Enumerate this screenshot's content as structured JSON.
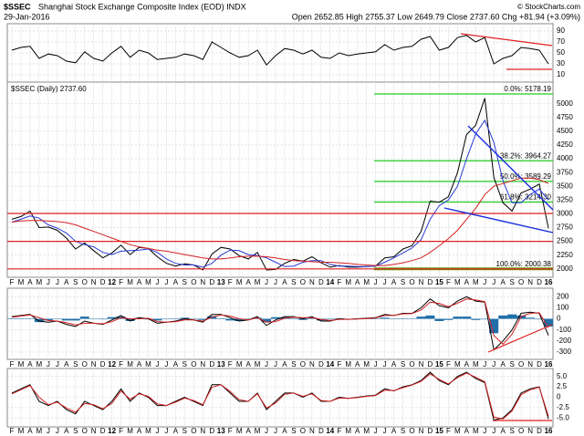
{
  "header": {
    "symbol": "$SSEC",
    "name": "Shanghai Stock Exchange Composite Index (EOD) INDX",
    "date": "29-Jan-2016",
    "quote": "Open 2652.85 High 2755.37 Low 2649.79 Close 2737.60 Chg +81.94 (+3.09%)",
    "credit": "© StockCharts.com"
  },
  "chart_data": [
    {
      "type": "line",
      "ylim": [
        0,
        100
      ],
      "yticks": [
        90,
        70,
        50,
        30,
        10
      ],
      "grid": true,
      "series": [
        {
          "color": "#000000",
          "values": [
            55,
            60,
            62,
            40,
            48,
            45,
            35,
            32,
            52,
            40,
            35,
            50,
            62,
            42,
            55,
            50,
            38,
            40,
            42,
            48,
            45,
            38,
            70,
            60,
            50,
            42,
            45,
            55,
            28,
            45,
            58,
            55,
            48,
            55,
            42,
            40,
            50,
            45,
            48,
            50,
            52,
            65,
            55,
            60,
            62,
            75,
            80,
            55,
            60,
            78,
            82,
            70,
            78,
            30,
            40,
            45,
            60,
            58,
            55,
            30
          ]
        }
      ]
    },
    {
      "type": "line",
      "ylim": [
        1880,
        5360
      ],
      "grid": true,
      "yticks": [
        2000,
        2250,
        2500,
        2750,
        3000,
        3250,
        3500,
        3750,
        4000,
        4250,
        4500,
        4750,
        5000
      ],
      "categories": [
        "F",
        "M",
        "A",
        "M",
        "J",
        "J",
        "A",
        "S",
        "O",
        "N",
        "D",
        "12",
        "F",
        "M",
        "A",
        "M",
        "J",
        "J",
        "A",
        "S",
        "O",
        "N",
        "D",
        "13",
        "F",
        "M",
        "A",
        "M",
        "J",
        "J",
        "A",
        "S",
        "O",
        "N",
        "D",
        "14",
        "F",
        "M",
        "A",
        "M",
        "J",
        "J",
        "A",
        "S",
        "O",
        "N",
        "D",
        "15",
        "F",
        "M",
        "A",
        "M",
        "J",
        "J",
        "A",
        "S",
        "O",
        "N",
        "D",
        "16"
      ],
      "fib_levels": [
        {
          "text": "0.0%: 5178.19",
          "value": 5178.19
        },
        {
          "text": "38.2%: 3964.27",
          "value": 3964.27
        },
        {
          "text": "50.0%: 3589.29",
          "value": 3589.29
        },
        {
          "text": "61.8%: 3214.30",
          "value": 3214.3
        },
        {
          "text": "100.0%: 2000.38",
          "value": 2000.38
        }
      ],
      "series": [
        {
          "name": "$SSEC (Daily) 2737.60",
          "color": "#000000",
          "values": [
            2900,
            2950,
            3050,
            2750,
            2760,
            2700,
            2560,
            2360,
            2470,
            2330,
            2200,
            2290,
            2430,
            2260,
            2390,
            2370,
            2220,
            2100,
            2050,
            2090,
            2070,
            1980,
            2270,
            2390,
            2360,
            2240,
            2180,
            2300,
            1980,
            1990,
            2100,
            2170,
            2140,
            2220,
            2110,
            2030,
            2060,
            2030,
            2030,
            2040,
            2050,
            2200,
            2220,
            2360,
            2420,
            2680,
            3230,
            3210,
            3310,
            3750,
            4440,
            4610,
            5100,
            3660,
            3200,
            3050,
            3380,
            3450,
            3540,
            2737.6
          ]
        },
        {
          "color": "#2a3bd6",
          "values": [
            2850,
            2900,
            2960,
            2920,
            2800,
            2740,
            2650,
            2500,
            2440,
            2400,
            2300,
            2260,
            2320,
            2330,
            2340,
            2360,
            2300,
            2180,
            2100,
            2070,
            2070,
            2030,
            2100,
            2250,
            2340,
            2330,
            2260,
            2240,
            2200,
            2120,
            2040,
            2050,
            2120,
            2150,
            2150,
            2080,
            2050,
            2050,
            2040,
            2040,
            2050,
            2120,
            2200,
            2290,
            2380,
            2530,
            2900,
            3150,
            3250,
            3500,
            4000,
            4450,
            4700,
            4300,
            3600,
            3200,
            3200,
            3350,
            3450,
            3250
          ]
        },
        {
          "color": "#d42020",
          "values": [
            2850,
            2870,
            2880,
            2880,
            2870,
            2860,
            2840,
            2800,
            2740,
            2680,
            2620,
            2560,
            2500,
            2440,
            2400,
            2370,
            2340,
            2320,
            2290,
            2260,
            2230,
            2200,
            2180,
            2180,
            2200,
            2220,
            2230,
            2230,
            2220,
            2200,
            2170,
            2150,
            2140,
            2130,
            2120,
            2120,
            2110,
            2100,
            2080,
            2070,
            2060,
            2060,
            2080,
            2110,
            2150,
            2200,
            2300,
            2420,
            2550,
            2700,
            2900,
            3100,
            3350,
            3500,
            3550,
            3600,
            3650,
            3650,
            3620,
            3550
          ]
        }
      ]
    },
    {
      "type": "line",
      "ylim": [
        -350,
        260
      ],
      "yticks": [
        200,
        100,
        0,
        -100,
        -200,
        -300
      ],
      "grid": true,
      "categories": [
        "F",
        "M",
        "A",
        "M",
        "J",
        "J",
        "A",
        "S",
        "O",
        "N",
        "D",
        "12",
        "F",
        "M",
        "A",
        "M",
        "J",
        "J",
        "A",
        "S",
        "O",
        "N",
        "D",
        "13",
        "F",
        "M",
        "A",
        "M",
        "J",
        "J",
        "A",
        "S",
        "O",
        "N",
        "D",
        "14",
        "F",
        "M",
        "A",
        "M",
        "J",
        "J",
        "A",
        "S",
        "O",
        "N",
        "D",
        "15",
        "F",
        "M",
        "A",
        "M",
        "J",
        "J",
        "A",
        "S",
        "O",
        "N",
        "D",
        "16"
      ],
      "series": [
        {
          "color": "#1f6fa8",
          "style": "histogram",
          "values": [
            5,
            5,
            5,
            -30,
            -15,
            0,
            -15,
            -15,
            20,
            0,
            -5,
            15,
            20,
            -20,
            10,
            -5,
            -15,
            0,
            5,
            10,
            0,
            -10,
            25,
            5,
            -15,
            -20,
            0,
            10,
            -30,
            15,
            15,
            5,
            -10,
            10,
            -15,
            -5,
            5,
            0,
            2,
            3,
            2,
            10,
            -2,
            5,
            2,
            20,
            30,
            -20,
            -10,
            20,
            20,
            -10,
            -5,
            -130,
            30,
            40,
            30,
            10,
            -5,
            -70
          ]
        },
        {
          "color": "#000000",
          "values": [
            20,
            30,
            40,
            -20,
            -30,
            -20,
            -50,
            -70,
            -20,
            -40,
            -50,
            -10,
            30,
            -20,
            10,
            0,
            -40,
            -30,
            -20,
            0,
            -10,
            -30,
            40,
            40,
            10,
            -20,
            -10,
            20,
            -60,
            -10,
            20,
            20,
            0,
            20,
            -20,
            -20,
            0,
            -5,
            0,
            5,
            10,
            40,
            30,
            50,
            50,
            100,
            180,
            120,
            100,
            160,
            200,
            160,
            150,
            -280,
            -200,
            -100,
            50,
            60,
            50,
            -150
          ]
        },
        {
          "color": "#d42020",
          "values": [
            15,
            25,
            35,
            10,
            -15,
            -20,
            -35,
            -55,
            -40,
            -40,
            -45,
            -25,
            10,
            0,
            0,
            5,
            -25,
            -30,
            -25,
            -10,
            -10,
            -20,
            15,
            35,
            25,
            0,
            -10,
            10,
            -30,
            -25,
            5,
            15,
            10,
            10,
            -5,
            -15,
            -5,
            -5,
            -2,
            2,
            8,
            30,
            32,
            45,
            48,
            80,
            150,
            140,
            110,
            140,
            180,
            170,
            155,
            -150,
            -230,
            -140,
            20,
            50,
            55,
            -80
          ]
        }
      ]
    },
    {
      "type": "line",
      "ylim": [
        -6.7,
        6.9
      ],
      "grid": true,
      "yticks": [
        {
          "value": 5,
          "label": "5.0"
        },
        2.5,
        0,
        -2.5,
        {
          "value": -5,
          "label": "-5.0"
        }
      ],
      "categories": [
        "F",
        "M",
        "A",
        "M",
        "J",
        "J",
        "A",
        "S",
        "O",
        "N",
        "D",
        "12",
        "F",
        "M",
        "A",
        "M",
        "J",
        "J",
        "A",
        "S",
        "O",
        "N",
        "D",
        "13",
        "F",
        "M",
        "A",
        "M",
        "J",
        "J",
        "A",
        "S",
        "O",
        "N",
        "D",
        "14",
        "F",
        "M",
        "A",
        "M",
        "J",
        "J",
        "A",
        "S",
        "O",
        "N",
        "D",
        "15",
        "F",
        "M",
        "A",
        "M",
        "J",
        "J",
        "A",
        "S",
        "O",
        "N",
        "D",
        "16"
      ],
      "series": [
        {
          "color": "#000000",
          "values": [
            1,
            2,
            3,
            -1,
            -2,
            -1,
            -3,
            -4,
            -1,
            -2,
            -3,
            -1,
            2,
            -1,
            1,
            0,
            -2,
            -2,
            -1,
            0,
            -1,
            -2,
            3,
            3,
            1,
            -1,
            -1,
            1,
            -3,
            -1,
            1,
            1,
            0,
            1,
            -1,
            -1,
            0,
            -0.3,
            0,
            0.3,
            0.5,
            2,
            1.5,
            2.5,
            3,
            4,
            6,
            4,
            3,
            5,
            6,
            4.5,
            3.5,
            -5.5,
            -5,
            -3,
            1,
            2,
            2.5,
            -5.2
          ]
        },
        {
          "color": "#d42020",
          "values": [
            0.8,
            1.8,
            2.8,
            0,
            -1.8,
            -1.2,
            -2.6,
            -3.6,
            -1.5,
            -1.8,
            -2.8,
            -1.5,
            1.5,
            -0.5,
            0.8,
            0.2,
            -1.6,
            -2,
            -1.2,
            -0.2,
            -0.8,
            -1.8,
            2.4,
            3,
            1.4,
            -0.6,
            -1,
            0.8,
            -2.6,
            -1.4,
            0.7,
            1,
            0.2,
            0.8,
            -0.8,
            -1,
            -0.2,
            -0.3,
            -0.1,
            0.2,
            0.4,
            1.7,
            1.6,
            2.3,
            2.9,
            3.8,
            5.6,
            4.3,
            3.2,
            4.7,
            5.8,
            4.8,
            3.7,
            -4.8,
            -5.2,
            -3.3,
            0.6,
            1.8,
            2.4,
            -4.6
          ]
        }
      ]
    }
  ]
}
